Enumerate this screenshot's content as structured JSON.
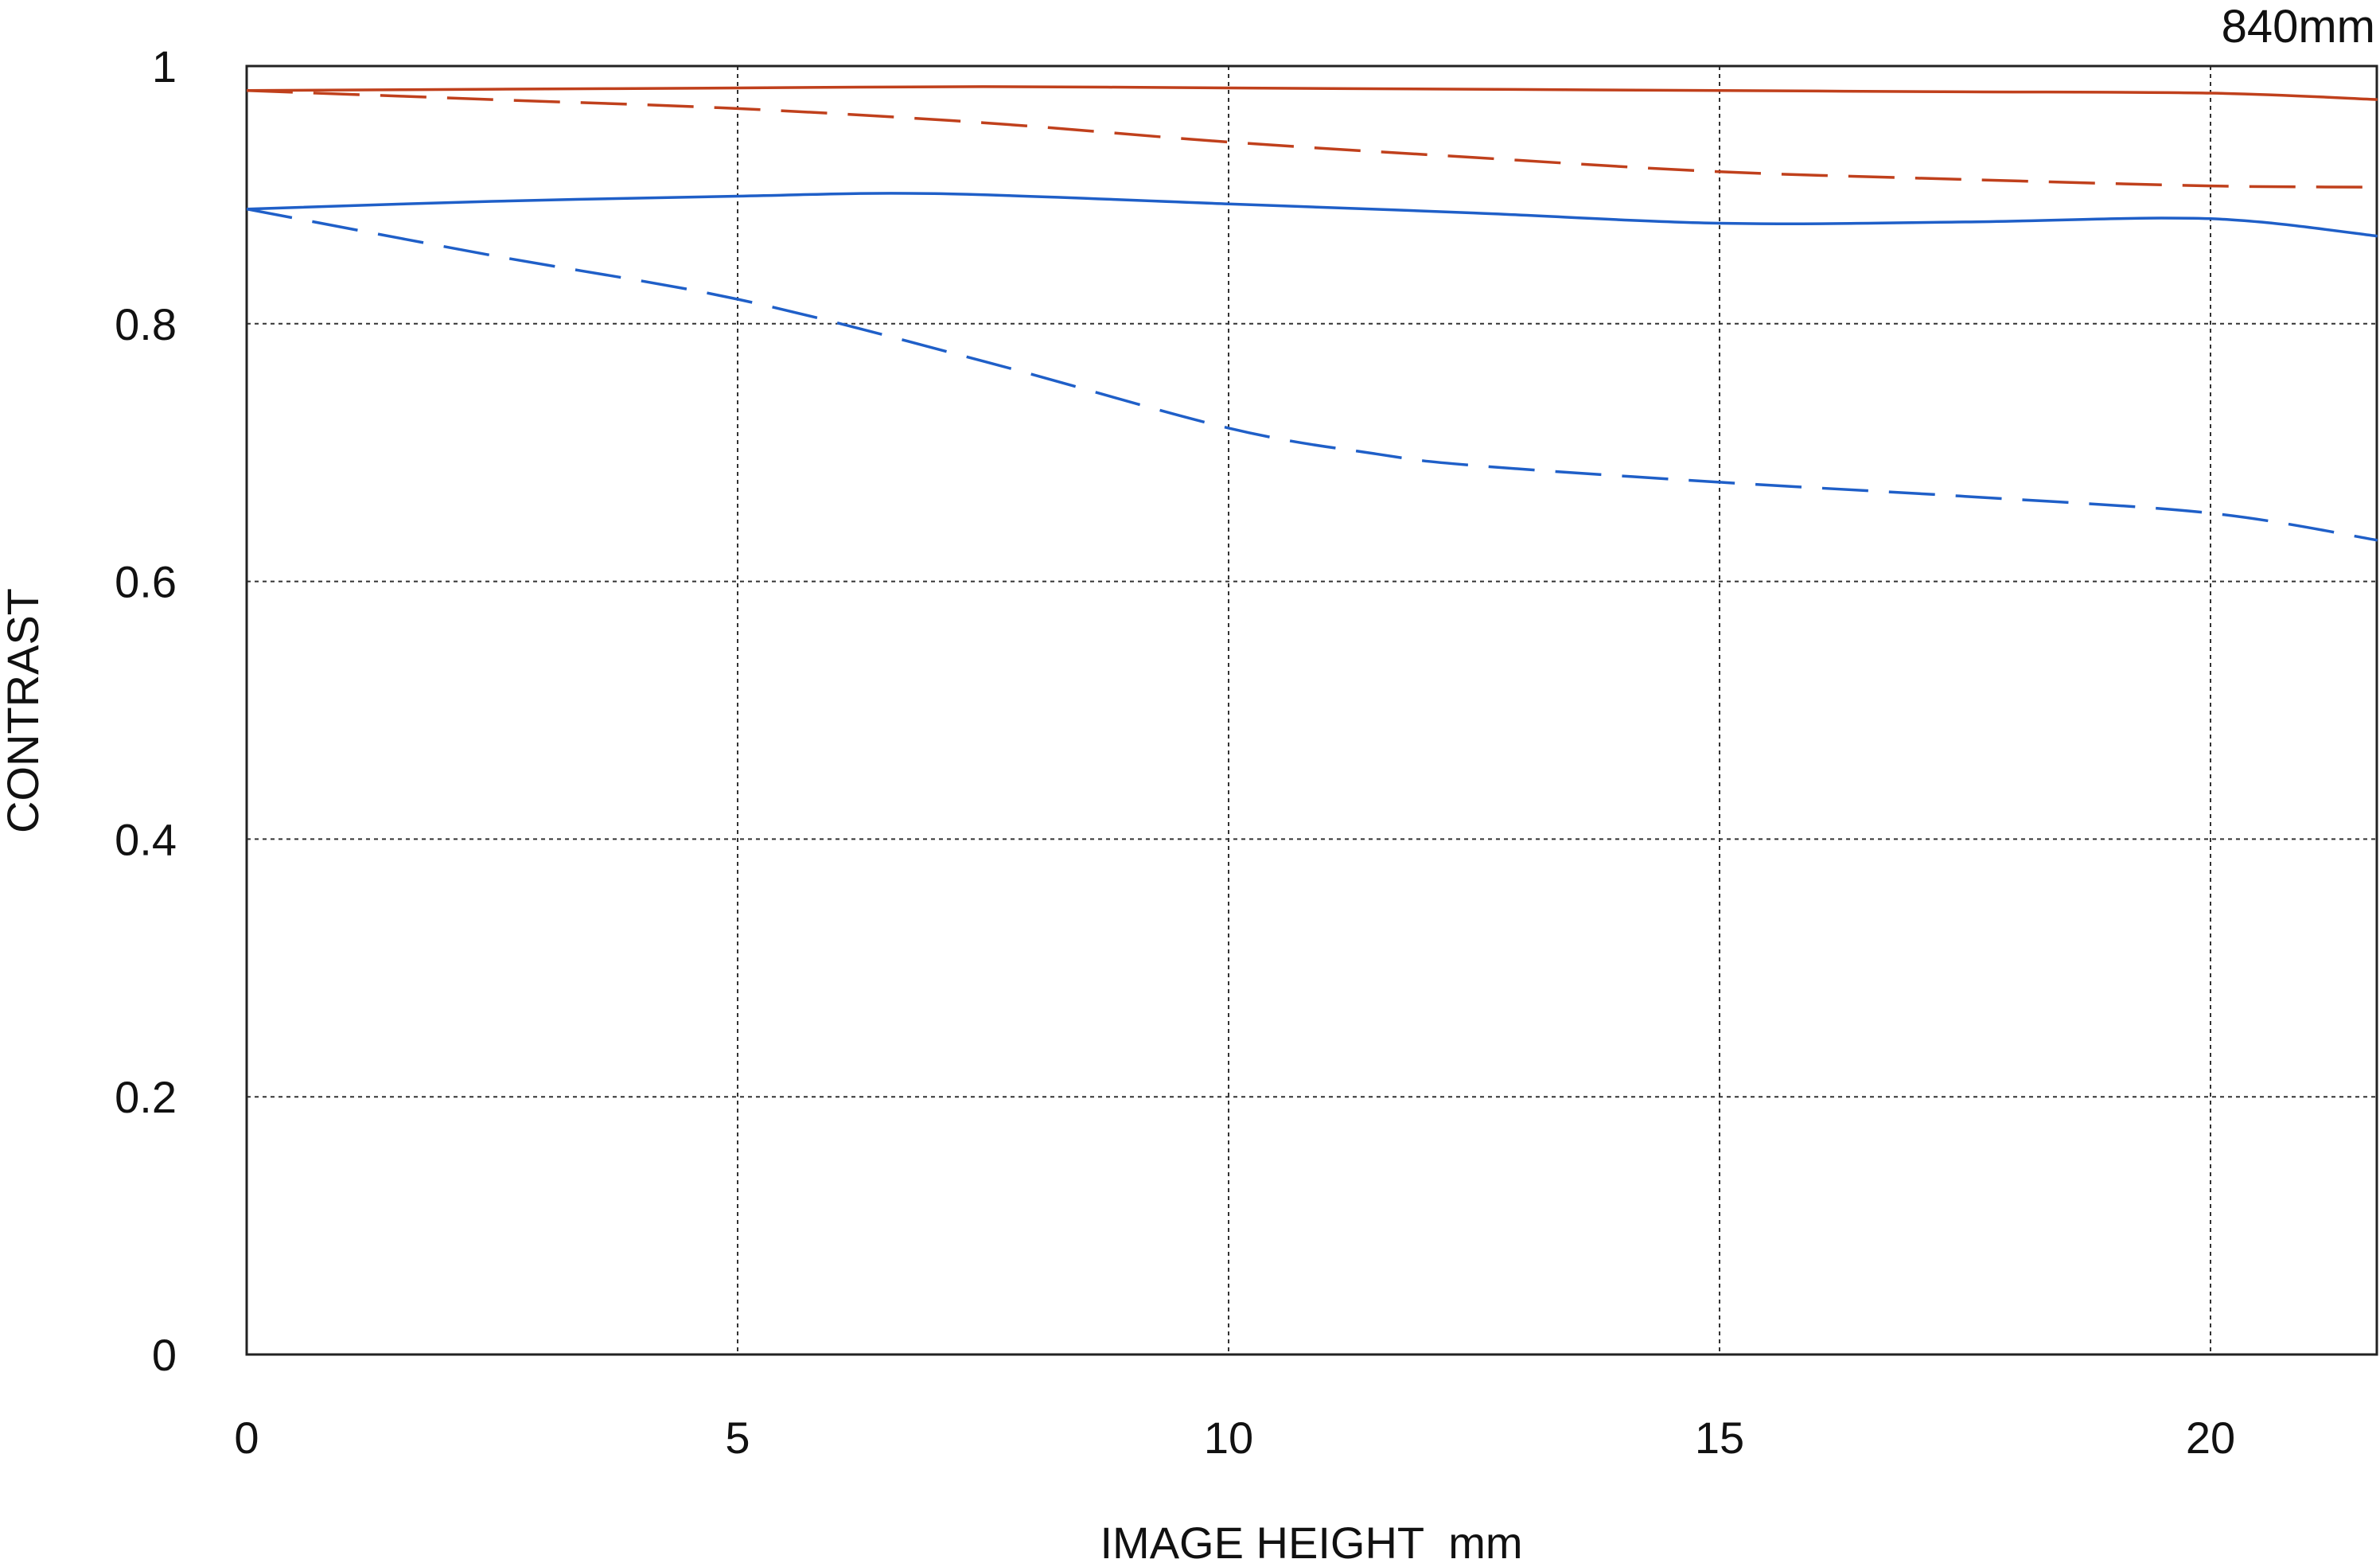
{
  "chart_data": {
    "type": "line",
    "title": "",
    "annotation": "840mm",
    "xlabel": "IMAGE HEIGHT  mm",
    "ylabel": "CONTRAST",
    "xlim": [
      0,
      21.7
    ],
    "ylim": [
      0,
      1
    ],
    "x_ticks": [
      0,
      5,
      10,
      15,
      20
    ],
    "x_tick_labels": [
      "0",
      "5",
      "10",
      "15",
      "20"
    ],
    "y_ticks": [
      0,
      0.2,
      0.4,
      0.6,
      0.8,
      1
    ],
    "y_tick_labels": [
      "0",
      "0.2",
      "0.4",
      "0.6",
      "0.8",
      "1"
    ],
    "grid": true,
    "legend": "none",
    "series": [
      {
        "color": "#c0401c",
        "dash": "solid",
        "points": [
          [
            0,
            0.981
          ],
          [
            2.5,
            0.982
          ],
          [
            5,
            0.983
          ],
          [
            7.5,
            0.984
          ],
          [
            10,
            0.983
          ],
          [
            12.5,
            0.982
          ],
          [
            15,
            0.981
          ],
          [
            17.5,
            0.98
          ],
          [
            20,
            0.979
          ],
          [
            21.7,
            0.974
          ]
        ]
      },
      {
        "color": "#c0401c",
        "dash": "dashed",
        "points": [
          [
            0,
            0.981
          ],
          [
            2.5,
            0.974
          ],
          [
            5,
            0.967
          ],
          [
            7.5,
            0.956
          ],
          [
            10,
            0.941
          ],
          [
            12.5,
            0.929
          ],
          [
            15,
            0.918
          ],
          [
            17.5,
            0.912
          ],
          [
            20,
            0.907
          ],
          [
            21.7,
            0.906
          ]
        ]
      },
      {
        "color": "#1f5fc8",
        "dash": "solid",
        "points": [
          [
            0,
            0.889
          ],
          [
            2.5,
            0.895
          ],
          [
            5,
            0.899
          ],
          [
            7,
            0.901
          ],
          [
            10,
            0.893
          ],
          [
            12.5,
            0.886
          ],
          [
            15,
            0.878
          ],
          [
            17.5,
            0.879
          ],
          [
            19.5,
            0.882
          ],
          [
            20.5,
            0.879
          ],
          [
            21.7,
            0.868
          ]
        ]
      },
      {
        "color": "#1f5fc8",
        "dash": "dashed",
        "points": [
          [
            0,
            0.889
          ],
          [
            2.5,
            0.853
          ],
          [
            5,
            0.819
          ],
          [
            7.5,
            0.771
          ],
          [
            10,
            0.719
          ],
          [
            11.5,
            0.699
          ],
          [
            12.5,
            0.69
          ],
          [
            15,
            0.677
          ],
          [
            17.5,
            0.666
          ],
          [
            20,
            0.653
          ],
          [
            21.7,
            0.632
          ]
        ]
      }
    ]
  }
}
